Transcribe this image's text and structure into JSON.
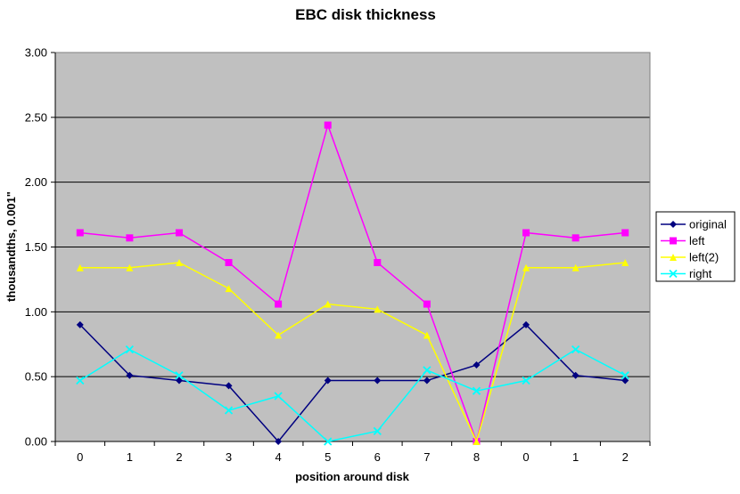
{
  "chart_data": {
    "type": "line",
    "title": "EBC disk thickness",
    "xlabel": "position around disk",
    "ylabel": "thousandths, 0.001\"",
    "categories": [
      "0",
      "1",
      "2",
      "3",
      "4",
      "5",
      "6",
      "7",
      "8",
      "0",
      "1",
      "2"
    ],
    "ylim": [
      0,
      3
    ],
    "yticks": [
      "0.00",
      "0.50",
      "1.00",
      "1.50",
      "2.00",
      "2.50",
      "3.00"
    ],
    "grid": true,
    "plot_background": "#c0c0c0",
    "legend_position": "right",
    "series": [
      {
        "name": "original",
        "color": "#000080",
        "marker": "diamond",
        "values": [
          0.9,
          0.51,
          0.47,
          0.43,
          0.0,
          0.47,
          0.47,
          0.47,
          0.59,
          0.9,
          0.51,
          0.47
        ]
      },
      {
        "name": "left",
        "color": "#ff00ff",
        "marker": "square",
        "values": [
          1.61,
          1.57,
          1.61,
          1.38,
          1.06,
          2.44,
          1.38,
          1.06,
          0.0,
          1.61,
          1.57,
          1.61
        ]
      },
      {
        "name": "left(2)",
        "color": "#ffff00",
        "marker": "triangle",
        "values": [
          1.34,
          1.34,
          1.38,
          1.18,
          0.82,
          1.06,
          1.02,
          0.82,
          0.0,
          1.34,
          1.34,
          1.38
        ]
      },
      {
        "name": "right",
        "color": "#00ffff",
        "marker": "x",
        "values": [
          0.47,
          0.71,
          0.51,
          0.24,
          0.35,
          0.0,
          0.08,
          0.55,
          0.39,
          0.47,
          0.71,
          0.51
        ]
      }
    ]
  }
}
